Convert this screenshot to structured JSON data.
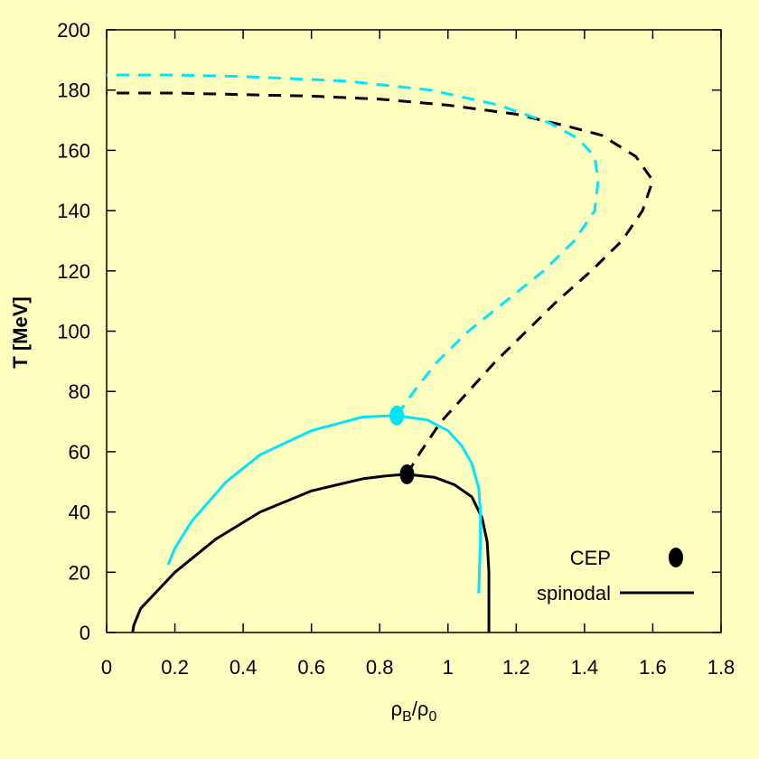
{
  "colors": {
    "background": "#ffffc0",
    "black": "#000000",
    "cyan": "#00e5ff"
  },
  "chart_data": {
    "type": "line",
    "xlabel": "ρB/ρ0",
    "xlabel_main": "ρ",
    "xlabel_sub1": "B",
    "xlabel_slash": "/ρ",
    "xlabel_sub2": "0",
    "ylabel": "T [MeV]",
    "xlim": [
      0,
      1.8
    ],
    "ylim": [
      0,
      200
    ],
    "xticks": [
      0,
      0.2,
      0.4,
      0.6,
      0.8,
      1,
      1.2,
      1.4,
      1.6,
      1.8
    ],
    "xtick_labels": [
      "0",
      "0.2",
      "0.4",
      "0.6",
      "0.8",
      "1",
      "1.2",
      "1.4",
      "1.6",
      "1.8"
    ],
    "yticks": [
      0,
      20,
      40,
      60,
      80,
      100,
      120,
      140,
      160,
      180,
      200
    ],
    "ytick_labels": [
      "0",
      "20",
      "40",
      "60",
      "80",
      "100",
      "120",
      "140",
      "160",
      "180",
      "200"
    ],
    "grid": false,
    "legend_position": "bottom-right",
    "legend": {
      "cep_label": "CEP",
      "spinodal_label": "spinodal"
    },
    "series": [
      {
        "color": "black",
        "style": "solid",
        "points": [
          [
            1.12,
            0
          ],
          [
            1.12,
            10
          ],
          [
            1.12,
            20
          ],
          [
            1.115,
            30
          ],
          [
            1.1,
            38
          ],
          [
            1.07,
            45
          ],
          [
            1.02,
            49
          ],
          [
            0.96,
            51.5
          ],
          [
            0.88,
            52.5
          ],
          [
            0.82,
            52
          ],
          [
            0.75,
            51
          ],
          [
            0.6,
            47
          ],
          [
            0.45,
            40
          ],
          [
            0.32,
            31
          ],
          [
            0.2,
            20
          ],
          [
            0.1,
            8
          ],
          [
            0.08,
            2.5
          ],
          [
            0.076,
            0
          ]
        ]
      },
      {
        "color": "black",
        "style": "dashed",
        "points": [
          [
            0.88,
            52.5
          ],
          [
            0.92,
            60
          ],
          [
            0.98,
            70
          ],
          [
            1.06,
            80
          ],
          [
            1.14,
            90
          ],
          [
            1.23,
            100
          ],
          [
            1.32,
            110
          ],
          [
            1.42,
            120
          ],
          [
            1.51,
            130
          ],
          [
            1.57,
            140
          ],
          [
            1.6,
            150
          ],
          [
            1.55,
            158
          ],
          [
            1.45,
            165
          ],
          [
            1.35,
            168
          ],
          [
            1.2,
            172
          ],
          [
            1.0,
            175
          ],
          [
            0.8,
            177
          ],
          [
            0.6,
            178
          ],
          [
            0.4,
            178.5
          ],
          [
            0.2,
            179
          ],
          [
            0,
            179
          ]
        ]
      },
      {
        "color": "cyan",
        "style": "solid",
        "points": [
          [
            1.09,
            13
          ],
          [
            1.095,
            30
          ],
          [
            1.095,
            40
          ],
          [
            1.09,
            48
          ],
          [
            1.07,
            56
          ],
          [
            1.04,
            62
          ],
          [
            1.0,
            67
          ],
          [
            0.94,
            70.5
          ],
          [
            0.85,
            72
          ],
          [
            0.75,
            71.5
          ],
          [
            0.6,
            67
          ],
          [
            0.45,
            59
          ],
          [
            0.35,
            50
          ],
          [
            0.25,
            37
          ],
          [
            0.2,
            28
          ],
          [
            0.18,
            22.5
          ]
        ]
      },
      {
        "color": "cyan",
        "style": "dashed",
        "points": [
          [
            0.85,
            72
          ],
          [
            0.9,
            80
          ],
          [
            0.97,
            90
          ],
          [
            1.06,
            100
          ],
          [
            1.17,
            110
          ],
          [
            1.28,
            120
          ],
          [
            1.37,
            130
          ],
          [
            1.43,
            140
          ],
          [
            1.44,
            150
          ],
          [
            1.43,
            158
          ],
          [
            1.38,
            164
          ],
          [
            1.3,
            169
          ],
          [
            1.15,
            175
          ],
          [
            0.95,
            180
          ],
          [
            0.7,
            183
          ],
          [
            0.4,
            184.5
          ],
          [
            0.2,
            185
          ],
          [
            0,
            185
          ]
        ]
      }
    ],
    "cep_points": [
      {
        "color": "cyan",
        "x": 0.85,
        "y": 72
      },
      {
        "color": "black",
        "x": 0.88,
        "y": 52.5
      }
    ]
  }
}
